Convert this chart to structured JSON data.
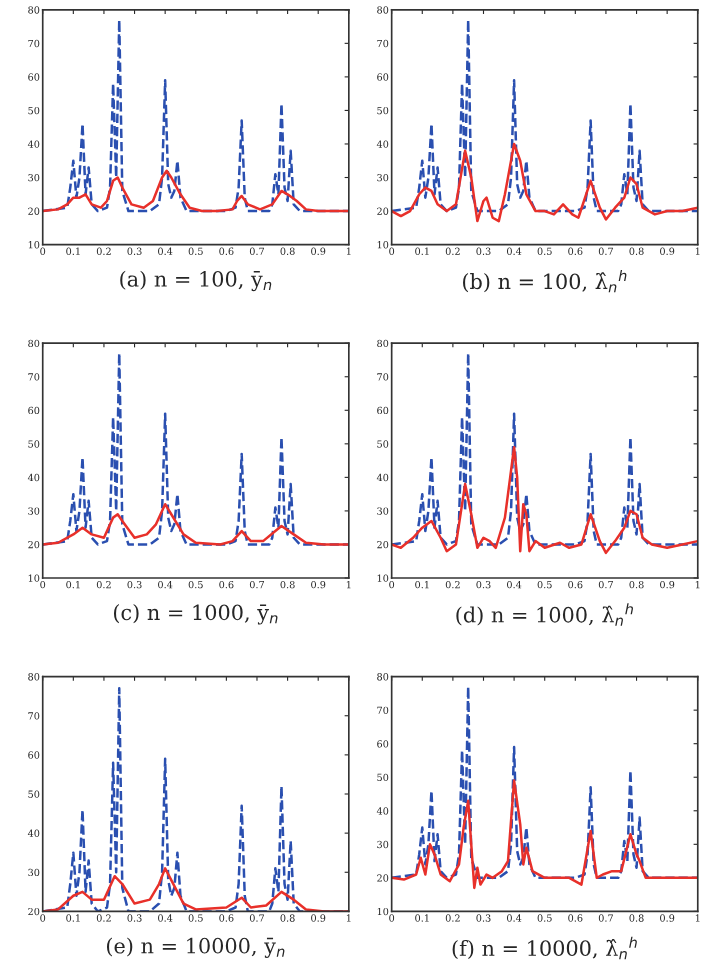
{
  "chart_data": [
    {
      "type": "line",
      "xlabel": "(a) n = 100, ȳ$_{n}$",
      "xlim": [
        0,
        1
      ],
      "ylim": [
        10,
        80
      ],
      "xticks": [
        0,
        0.1,
        0.2,
        0.3,
        0.4,
        0.5,
        0.6,
        0.7,
        0.8,
        0.9,
        1
      ],
      "yticks": [
        10,
        20,
        30,
        40,
        50,
        60,
        70,
        80
      ],
      "grid": false,
      "marker": "none",
      "series": [
        {
          "color": "#2a4fb0",
          "line_style": "dashed",
          "x": [
            0,
            0.08,
            0.09,
            0.1,
            0.11,
            0.12,
            0.13,
            0.14,
            0.15,
            0.16,
            0.18,
            0.21,
            0.22,
            0.23,
            0.24,
            0.25,
            0.26,
            0.28,
            0.35,
            0.38,
            0.39,
            0.4,
            0.41,
            0.42,
            0.43,
            0.44,
            0.45,
            0.47,
            0.6,
            0.63,
            0.64,
            0.65,
            0.66,
            0.67,
            0.74,
            0.75,
            0.76,
            0.77,
            0.78,
            0.79,
            0.8,
            0.81,
            0.82,
            0.84,
            1.0
          ],
          "values": [
            20,
            21,
            27,
            35,
            24,
            30,
            46,
            25,
            33,
            22,
            20,
            21,
            27,
            58,
            30,
            77,
            26,
            20,
            20,
            22,
            30,
            59,
            28,
            24,
            26,
            35,
            24,
            20,
            20,
            21,
            27,
            47,
            24,
            20,
            20,
            22,
            31,
            25,
            52,
            27,
            23,
            38,
            22,
            20,
            20
          ]
        },
        {
          "color": "#e8302a",
          "line_style": "solid",
          "x": [
            0,
            0.05,
            0.08,
            0.1,
            0.12,
            0.14,
            0.16,
            0.19,
            0.21,
            0.23,
            0.245,
            0.26,
            0.29,
            0.33,
            0.36,
            0.39,
            0.405,
            0.42,
            0.45,
            0.48,
            0.52,
            0.57,
            0.62,
            0.635,
            0.65,
            0.67,
            0.71,
            0.75,
            0.78,
            0.8,
            0.83,
            0.86,
            0.9,
            0.95,
            1
          ],
          "values": [
            20,
            20.5,
            22,
            24,
            24,
            25,
            22,
            21,
            23,
            29,
            30,
            27,
            22,
            21,
            23,
            30,
            32,
            30,
            25,
            21,
            20,
            20,
            20.5,
            23,
            24.5,
            22,
            20.5,
            22,
            26,
            25,
            23,
            20.5,
            20,
            20,
            20
          ]
        }
      ]
    },
    {
      "type": "line",
      "xlabel": "(b) n = 100, λ̂$_{n}$$^{h}$",
      "xlim": [
        0,
        1
      ],
      "ylim": [
        10,
        80
      ],
      "xticks": [
        0,
        0.1,
        0.2,
        0.3,
        0.4,
        0.5,
        0.6,
        0.7,
        0.8,
        0.9,
        1
      ],
      "yticks": [
        10,
        20,
        30,
        40,
        50,
        60,
        70,
        80
      ],
      "grid": false,
      "marker": "none",
      "series": [
        {
          "color": "#2a4fb0",
          "line_style": "dashed",
          "x": [
            0,
            0.08,
            0.09,
            0.1,
            0.11,
            0.12,
            0.13,
            0.14,
            0.15,
            0.16,
            0.18,
            0.21,
            0.22,
            0.23,
            0.24,
            0.25,
            0.26,
            0.28,
            0.35,
            0.38,
            0.39,
            0.4,
            0.41,
            0.42,
            0.43,
            0.44,
            0.45,
            0.47,
            0.6,
            0.63,
            0.64,
            0.65,
            0.66,
            0.67,
            0.74,
            0.75,
            0.76,
            0.77,
            0.78,
            0.79,
            0.8,
            0.81,
            0.82,
            0.84,
            1.0
          ],
          "values": [
            20,
            21,
            27,
            35,
            24,
            30,
            46,
            25,
            33,
            22,
            20,
            21,
            27,
            58,
            30,
            77,
            26,
            20,
            20,
            22,
            30,
            59,
            28,
            24,
            26,
            35,
            24,
            20,
            20,
            21,
            27,
            47,
            24,
            20,
            20,
            22,
            31,
            25,
            52,
            27,
            23,
            38,
            22,
            20,
            20
          ]
        },
        {
          "color": "#e8302a",
          "line_style": "solid",
          "x": [
            0,
            0.03,
            0.06,
            0.09,
            0.11,
            0.13,
            0.15,
            0.18,
            0.21,
            0.24,
            0.26,
            0.28,
            0.3,
            0.31,
            0.33,
            0.35,
            0.37,
            0.4,
            0.42,
            0.44,
            0.47,
            0.5,
            0.53,
            0.56,
            0.59,
            0.61,
            0.65,
            0.68,
            0.7,
            0.73,
            0.76,
            0.78,
            0.8,
            0.82,
            0.86,
            0.9,
            0.95,
            1
          ],
          "values": [
            20,
            18.5,
            20,
            25,
            27,
            26,
            22,
            20,
            22,
            38,
            30,
            17,
            23,
            24,
            18,
            17,
            25,
            40,
            35,
            25,
            20,
            20,
            19,
            22,
            19,
            18,
            29,
            21,
            17.5,
            21,
            24,
            30,
            28,
            21,
            19,
            20,
            20,
            21
          ]
        }
      ]
    },
    {
      "type": "line",
      "xlabel": "(c) n = 1000, ȳ$_{n}$",
      "xlim": [
        0,
        1
      ],
      "ylim": [
        10,
        80
      ],
      "xticks": [
        0,
        0.1,
        0.2,
        0.3,
        0.4,
        0.5,
        0.6,
        0.7,
        0.8,
        0.9,
        1
      ],
      "yticks": [
        10,
        20,
        30,
        40,
        50,
        60,
        70,
        80
      ],
      "grid": false,
      "marker": "none",
      "series": [
        {
          "color": "#2a4fb0",
          "line_style": "dashed",
          "x": [
            0,
            0.08,
            0.09,
            0.1,
            0.11,
            0.12,
            0.13,
            0.14,
            0.15,
            0.16,
            0.18,
            0.21,
            0.22,
            0.23,
            0.24,
            0.25,
            0.26,
            0.28,
            0.35,
            0.38,
            0.39,
            0.4,
            0.41,
            0.42,
            0.43,
            0.44,
            0.45,
            0.47,
            0.6,
            0.63,
            0.64,
            0.65,
            0.66,
            0.67,
            0.74,
            0.75,
            0.76,
            0.77,
            0.78,
            0.79,
            0.8,
            0.81,
            0.82,
            0.84,
            1.0
          ],
          "values": [
            20,
            21,
            27,
            35,
            24,
            30,
            46,
            25,
            33,
            22,
            20,
            21,
            27,
            58,
            30,
            77,
            26,
            20,
            20,
            22,
            30,
            59,
            28,
            24,
            26,
            35,
            24,
            20,
            20,
            21,
            27,
            47,
            24,
            20,
            20,
            22,
            31,
            25,
            52,
            27,
            23,
            38,
            22,
            20,
            20
          ]
        },
        {
          "color": "#e8302a",
          "line_style": "solid",
          "x": [
            0,
            0.05,
            0.1,
            0.13,
            0.16,
            0.2,
            0.23,
            0.245,
            0.26,
            0.3,
            0.34,
            0.37,
            0.4,
            0.42,
            0.46,
            0.5,
            0.58,
            0.62,
            0.65,
            0.68,
            0.72,
            0.76,
            0.78,
            0.82,
            0.86,
            0.92,
            1
          ],
          "values": [
            20,
            20.5,
            23,
            25,
            23,
            22,
            28,
            29,
            27,
            22,
            23,
            26,
            32,
            29,
            23,
            20.5,
            20,
            21,
            24,
            21,
            21,
            24,
            25.5,
            23,
            20.5,
            20,
            20
          ]
        }
      ]
    },
    {
      "type": "line",
      "xlabel": "(d) n = 1000, λ̂$_{n}$$^{h}$",
      "xlim": [
        0,
        1
      ],
      "ylim": [
        10,
        80
      ],
      "xticks": [
        0,
        0.1,
        0.2,
        0.3,
        0.4,
        0.5,
        0.6,
        0.7,
        0.8,
        0.9,
        1
      ],
      "yticks": [
        10,
        20,
        30,
        40,
        50,
        60,
        70,
        80
      ],
      "grid": false,
      "marker": "none",
      "series": [
        {
          "color": "#2a4fb0",
          "line_style": "dashed",
          "x": [
            0,
            0.08,
            0.09,
            0.1,
            0.11,
            0.12,
            0.13,
            0.14,
            0.15,
            0.16,
            0.18,
            0.21,
            0.22,
            0.23,
            0.24,
            0.25,
            0.26,
            0.28,
            0.35,
            0.38,
            0.39,
            0.4,
            0.41,
            0.42,
            0.43,
            0.44,
            0.45,
            0.47,
            0.6,
            0.63,
            0.64,
            0.65,
            0.66,
            0.67,
            0.74,
            0.75,
            0.76,
            0.77,
            0.78,
            0.79,
            0.8,
            0.81,
            0.82,
            0.84,
            1.0
          ],
          "values": [
            20,
            21,
            27,
            35,
            24,
            30,
            46,
            25,
            33,
            22,
            20,
            21,
            27,
            58,
            30,
            77,
            26,
            20,
            20,
            22,
            30,
            59,
            28,
            24,
            26,
            35,
            24,
            20,
            20,
            21,
            27,
            47,
            24,
            20,
            20,
            22,
            31,
            25,
            52,
            27,
            23,
            38,
            22,
            20,
            20
          ]
        },
        {
          "color": "#e8302a",
          "line_style": "solid",
          "x": [
            0,
            0.03,
            0.07,
            0.1,
            0.13,
            0.16,
            0.18,
            0.21,
            0.24,
            0.26,
            0.28,
            0.3,
            0.32,
            0.34,
            0.37,
            0.4,
            0.41,
            0.42,
            0.43,
            0.44,
            0.45,
            0.47,
            0.5,
            0.55,
            0.58,
            0.62,
            0.65,
            0.68,
            0.7,
            0.73,
            0.76,
            0.78,
            0.8,
            0.82,
            0.85,
            0.9,
            0.95,
            1
          ],
          "values": [
            20,
            19,
            22,
            25,
            27,
            22,
            18,
            20,
            38,
            29,
            19,
            22,
            21,
            19,
            28,
            49,
            40,
            18,
            32,
            29,
            18,
            21,
            19,
            20.5,
            19,
            20,
            29,
            21,
            17.5,
            21,
            25,
            30,
            29,
            22,
            20,
            19,
            20,
            21
          ]
        }
      ]
    },
    {
      "type": "line",
      "xlabel": "(e) n = 10000, ȳ$_{n}$",
      "xlim": [
        0,
        1
      ],
      "ylim": [
        20,
        80
      ],
      "xticks": [
        0,
        0.1,
        0.2,
        0.3,
        0.4,
        0.5,
        0.6,
        0.7,
        0.8,
        0.9,
        1
      ],
      "yticks": [
        20,
        30,
        40,
        50,
        60,
        70,
        80
      ],
      "grid": false,
      "marker": "none",
      "series": [
        {
          "color": "#2a4fb0",
          "line_style": "dashed",
          "x": [
            0,
            0.08,
            0.09,
            0.1,
            0.11,
            0.12,
            0.13,
            0.14,
            0.15,
            0.16,
            0.18,
            0.21,
            0.22,
            0.23,
            0.24,
            0.25,
            0.26,
            0.28,
            0.35,
            0.38,
            0.39,
            0.4,
            0.41,
            0.42,
            0.43,
            0.44,
            0.45,
            0.47,
            0.6,
            0.63,
            0.64,
            0.65,
            0.66,
            0.67,
            0.74,
            0.75,
            0.76,
            0.77,
            0.78,
            0.79,
            0.8,
            0.81,
            0.82,
            0.84,
            1.0
          ],
          "values": [
            20,
            21,
            27,
            35,
            24,
            30,
            46,
            25,
            33,
            22,
            20,
            21,
            27,
            58,
            30,
            77,
            26,
            20,
            20,
            22,
            30,
            59,
            28,
            24,
            26,
            35,
            24,
            20,
            20,
            21,
            27,
            47,
            24,
            20,
            20,
            22,
            31,
            25,
            52,
            27,
            23,
            38,
            22,
            20,
            20
          ]
        },
        {
          "color": "#e8302a",
          "line_style": "solid",
          "x": [
            0,
            0.05,
            0.1,
            0.13,
            0.16,
            0.2,
            0.235,
            0.26,
            0.3,
            0.35,
            0.38,
            0.4,
            0.42,
            0.46,
            0.5,
            0.6,
            0.65,
            0.68,
            0.73,
            0.78,
            0.82,
            0.86,
            0.92,
            1
          ],
          "values": [
            20,
            20.5,
            24,
            25,
            23,
            23,
            29,
            27,
            22,
            23,
            27,
            31,
            28,
            22,
            20.5,
            21,
            23.5,
            21,
            21.5,
            25,
            23,
            20.5,
            20,
            20
          ]
        }
      ]
    },
    {
      "type": "line",
      "xlabel": "(f) n = 10000, λ̂$_{n}$$^{h}$",
      "xlim": [
        0,
        1
      ],
      "ylim": [
        10,
        80
      ],
      "xticks": [
        0,
        0.1,
        0.2,
        0.3,
        0.4,
        0.5,
        0.6,
        0.7,
        0.8,
        0.9,
        1
      ],
      "yticks": [
        10,
        20,
        30,
        40,
        50,
        60,
        70,
        80
      ],
      "grid": false,
      "marker": "none",
      "series": [
        {
          "color": "#2a4fb0",
          "line_style": "dashed",
          "x": [
            0,
            0.08,
            0.09,
            0.1,
            0.11,
            0.12,
            0.13,
            0.14,
            0.15,
            0.16,
            0.18,
            0.21,
            0.22,
            0.23,
            0.24,
            0.25,
            0.26,
            0.28,
            0.35,
            0.38,
            0.39,
            0.4,
            0.41,
            0.42,
            0.43,
            0.44,
            0.45,
            0.47,
            0.6,
            0.63,
            0.64,
            0.65,
            0.66,
            0.67,
            0.74,
            0.75,
            0.76,
            0.77,
            0.78,
            0.79,
            0.8,
            0.81,
            0.82,
            0.84,
            1.0
          ],
          "values": [
            20,
            21,
            27,
            35,
            24,
            30,
            46,
            25,
            33,
            22,
            20,
            21,
            27,
            58,
            30,
            77,
            26,
            20,
            20,
            22,
            30,
            59,
            28,
            24,
            26,
            35,
            24,
            20,
            20,
            21,
            27,
            47,
            24,
            20,
            20,
            22,
            31,
            25,
            52,
            27,
            23,
            38,
            22,
            20,
            20
          ]
        },
        {
          "color": "#e8302a",
          "line_style": "solid",
          "x": [
            0,
            0.04,
            0.08,
            0.095,
            0.11,
            0.125,
            0.14,
            0.16,
            0.19,
            0.22,
            0.235,
            0.25,
            0.26,
            0.27,
            0.28,
            0.29,
            0.31,
            0.33,
            0.36,
            0.38,
            0.4,
            0.42,
            0.43,
            0.44,
            0.46,
            0.5,
            0.58,
            0.62,
            0.65,
            0.67,
            0.69,
            0.72,
            0.75,
            0.78,
            0.8,
            0.81,
            0.83,
            0.88,
            1
          ],
          "values": [
            20,
            19.5,
            21,
            26,
            21,
            30,
            27,
            21,
            19,
            24,
            35,
            43,
            30,
            17,
            23,
            18,
            21,
            20,
            22,
            25,
            49,
            36,
            24,
            29,
            22,
            20,
            20,
            18,
            34,
            20,
            21,
            22,
            22,
            33,
            27,
            25,
            20,
            20,
            20
          ]
        }
      ]
    }
  ]
}
